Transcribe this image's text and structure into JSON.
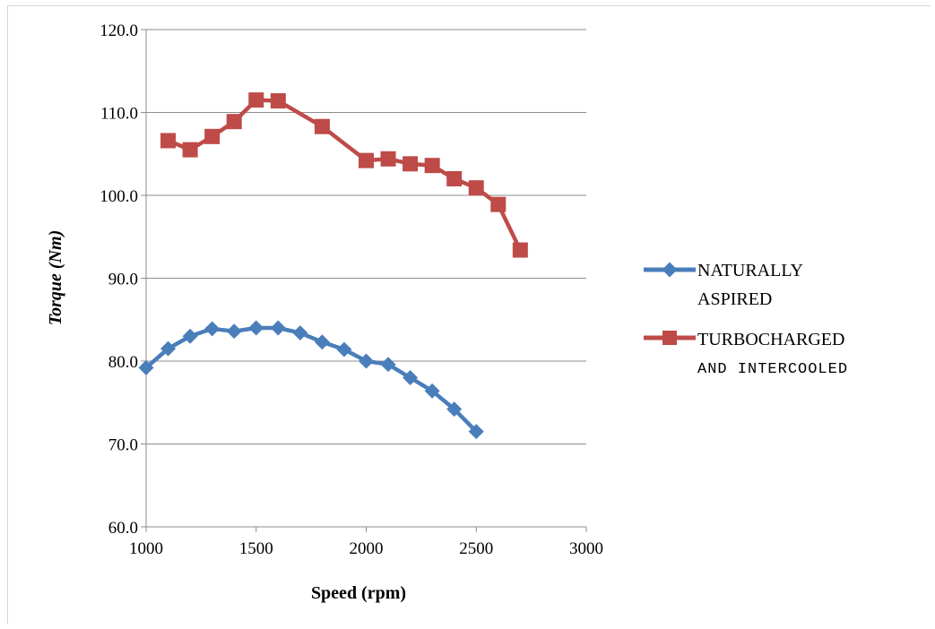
{
  "chart_data": {
    "type": "line",
    "title": "",
    "xlabel": "Speed  (rpm)",
    "ylabel": "Torque  (Nm)",
    "xlim": [
      1000,
      3000
    ],
    "ylim": [
      60,
      120
    ],
    "x_ticks": [
      "1000",
      "1500",
      "2000",
      "2500",
      "3000"
    ],
    "y_ticks": [
      "60.0",
      "70.0",
      "80.0",
      "90.0",
      "100.0",
      "110.0",
      "120.0"
    ],
    "grid": "horizontal",
    "legend_position": "right",
    "series": [
      {
        "name": "NATURALLY ASPIRED",
        "legend_lines": [
          "NATURALLY",
          "ASPIRED"
        ],
        "color": "#4a7ebb",
        "marker": "diamond",
        "x": [
          1000,
          1100,
          1200,
          1300,
          1400,
          1500,
          1600,
          1700,
          1800,
          1900,
          2000,
          2100,
          2200,
          2300,
          2400,
          2500
        ],
        "y": [
          79.2,
          81.5,
          83.0,
          83.9,
          83.6,
          84.0,
          84.0,
          83.4,
          82.3,
          81.4,
          80.0,
          79.6,
          78.0,
          76.4,
          74.2,
          71.5
        ]
      },
      {
        "name": "TURBOCHARGED AND INTERCOOLED",
        "legend_lines": [
          "TURBOCHARGED",
          "AND INTERCOOLED"
        ],
        "color": "#be4b48",
        "marker": "square",
        "x": [
          1100,
          1200,
          1300,
          1400,
          1500,
          1600,
          1800,
          2000,
          2100,
          2200,
          2300,
          2400,
          2500,
          2600,
          2700
        ],
        "y": [
          106.6,
          105.5,
          107.1,
          108.9,
          111.5,
          111.4,
          108.3,
          104.2,
          104.4,
          103.8,
          103.6,
          102.0,
          100.9,
          98.9,
          93.4
        ]
      }
    ]
  }
}
